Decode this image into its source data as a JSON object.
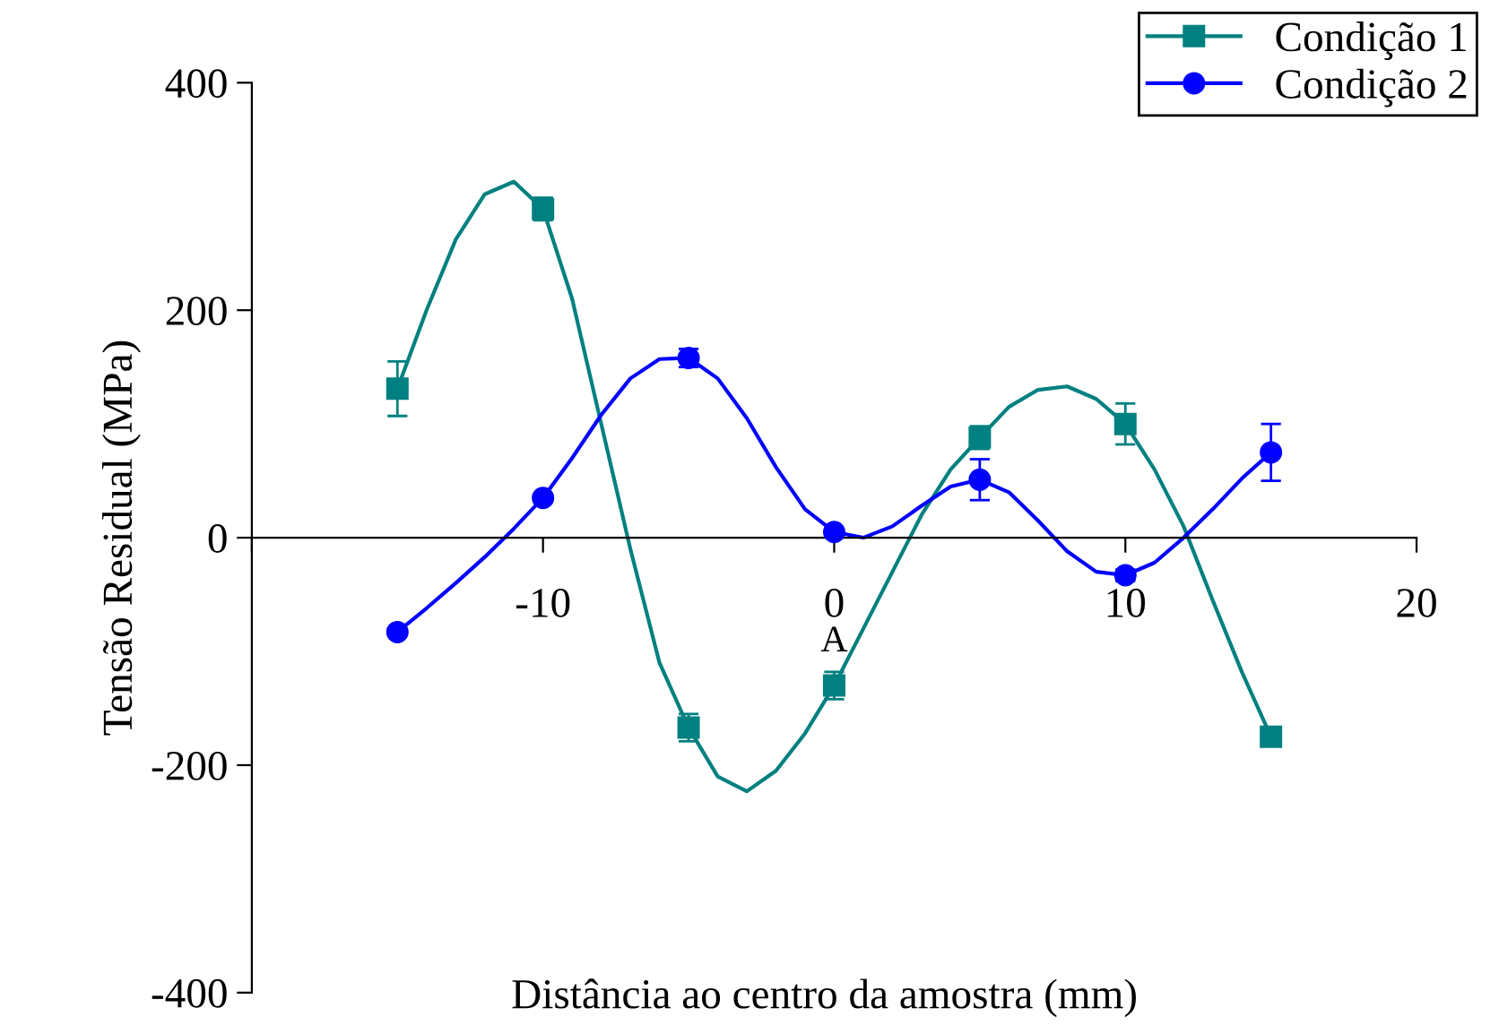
{
  "chart_data": {
    "type": "scatter",
    "xlabel": "Distância ao centro da amostra (mm)",
    "ylabel": "Tensão Residual (MPa)",
    "x": [
      -15,
      -10,
      -5,
      0,
      5,
      10,
      15
    ],
    "series": [
      {
        "name": "Condição 1",
        "color": "#008080",
        "marker": "square",
        "values": [
          131,
          289,
          -167,
          -130,
          88,
          100,
          -175
        ],
        "errors": [
          24,
          10,
          12,
          12,
          10,
          18,
          6
        ]
      },
      {
        "name": "Condição 2",
        "color": "#0000ff",
        "marker": "circle",
        "values": [
          -83,
          35,
          158,
          5,
          51,
          -33,
          75
        ],
        "errors": [
          null,
          null,
          8,
          null,
          18,
          5,
          25
        ]
      },
      {
        "type": "line",
        "color": "#008080",
        "x": [
          -15,
          -14,
          -13,
          -12,
          -11,
          -10,
          -9,
          -8,
          -7,
          -6,
          -5,
          -4,
          -3,
          -2,
          -1,
          0,
          1,
          2,
          3,
          4,
          5,
          6,
          7,
          8,
          9,
          10,
          11,
          12,
          13,
          14,
          15
        ],
        "values": [
          131,
          200,
          262,
          302,
          313,
          289,
          210,
          100,
          -10,
          -110,
          -167,
          -210,
          -223,
          -205,
          -172,
          -130,
          -80,
          -30,
          20,
          60,
          88,
          115,
          130,
          133,
          122,
          100,
          60,
          10,
          -55,
          -118,
          -175
        ]
      },
      {
        "type": "line",
        "color": "#0000ff",
        "x": [
          -15,
          -14,
          -13,
          -12,
          -11,
          -10,
          -9,
          -8,
          -7,
          -6,
          -5,
          -4,
          -3,
          -2,
          -1,
          0,
          1,
          2,
          3,
          4,
          5,
          6,
          7,
          8,
          9,
          10,
          11,
          12,
          13,
          14,
          15
        ],
        "values": [
          -83,
          -62,
          -40,
          -17,
          8,
          35,
          70,
          108,
          140,
          157,
          158,
          140,
          105,
          62,
          25,
          5,
          0,
          10,
          28,
          45,
          51,
          40,
          15,
          -12,
          -30,
          -33,
          -22,
          0,
          25,
          52,
          75
        ]
      }
    ],
    "xlim": [
      -20,
      20
    ],
    "xticks": [
      {
        "value": -20,
        "label": null
      },
      -10,
      0,
      10,
      20
    ],
    "ylim": [
      -400,
      400
    ],
    "yticks": [
      -400,
      -200,
      0,
      200,
      400
    ],
    "annotations": [
      "A"
    ],
    "grid": false,
    "legend": "top right",
    "line_style": "solid"
  }
}
